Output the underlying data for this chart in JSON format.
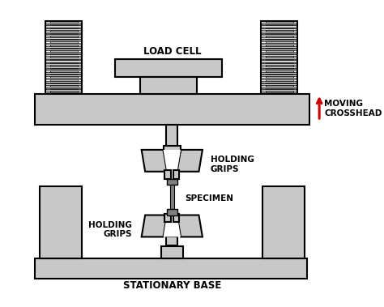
{
  "bg": "#ffffff",
  "gray": "#c8c8c8",
  "dgray": "#808080",
  "black": "#000000",
  "red": "#cc0000",
  "lw": 1.5,
  "label_load_cell": "LOAD CELL",
  "label_crosshead": "MOVING\nCROSSHEAD",
  "label_hgrips_top": "HOLDING\nGRIPS",
  "label_hgrips_bot": "HOLDING\nGRIPS",
  "label_specimen": "SPECIMEN",
  "label_base": "STATIONARY BASE"
}
